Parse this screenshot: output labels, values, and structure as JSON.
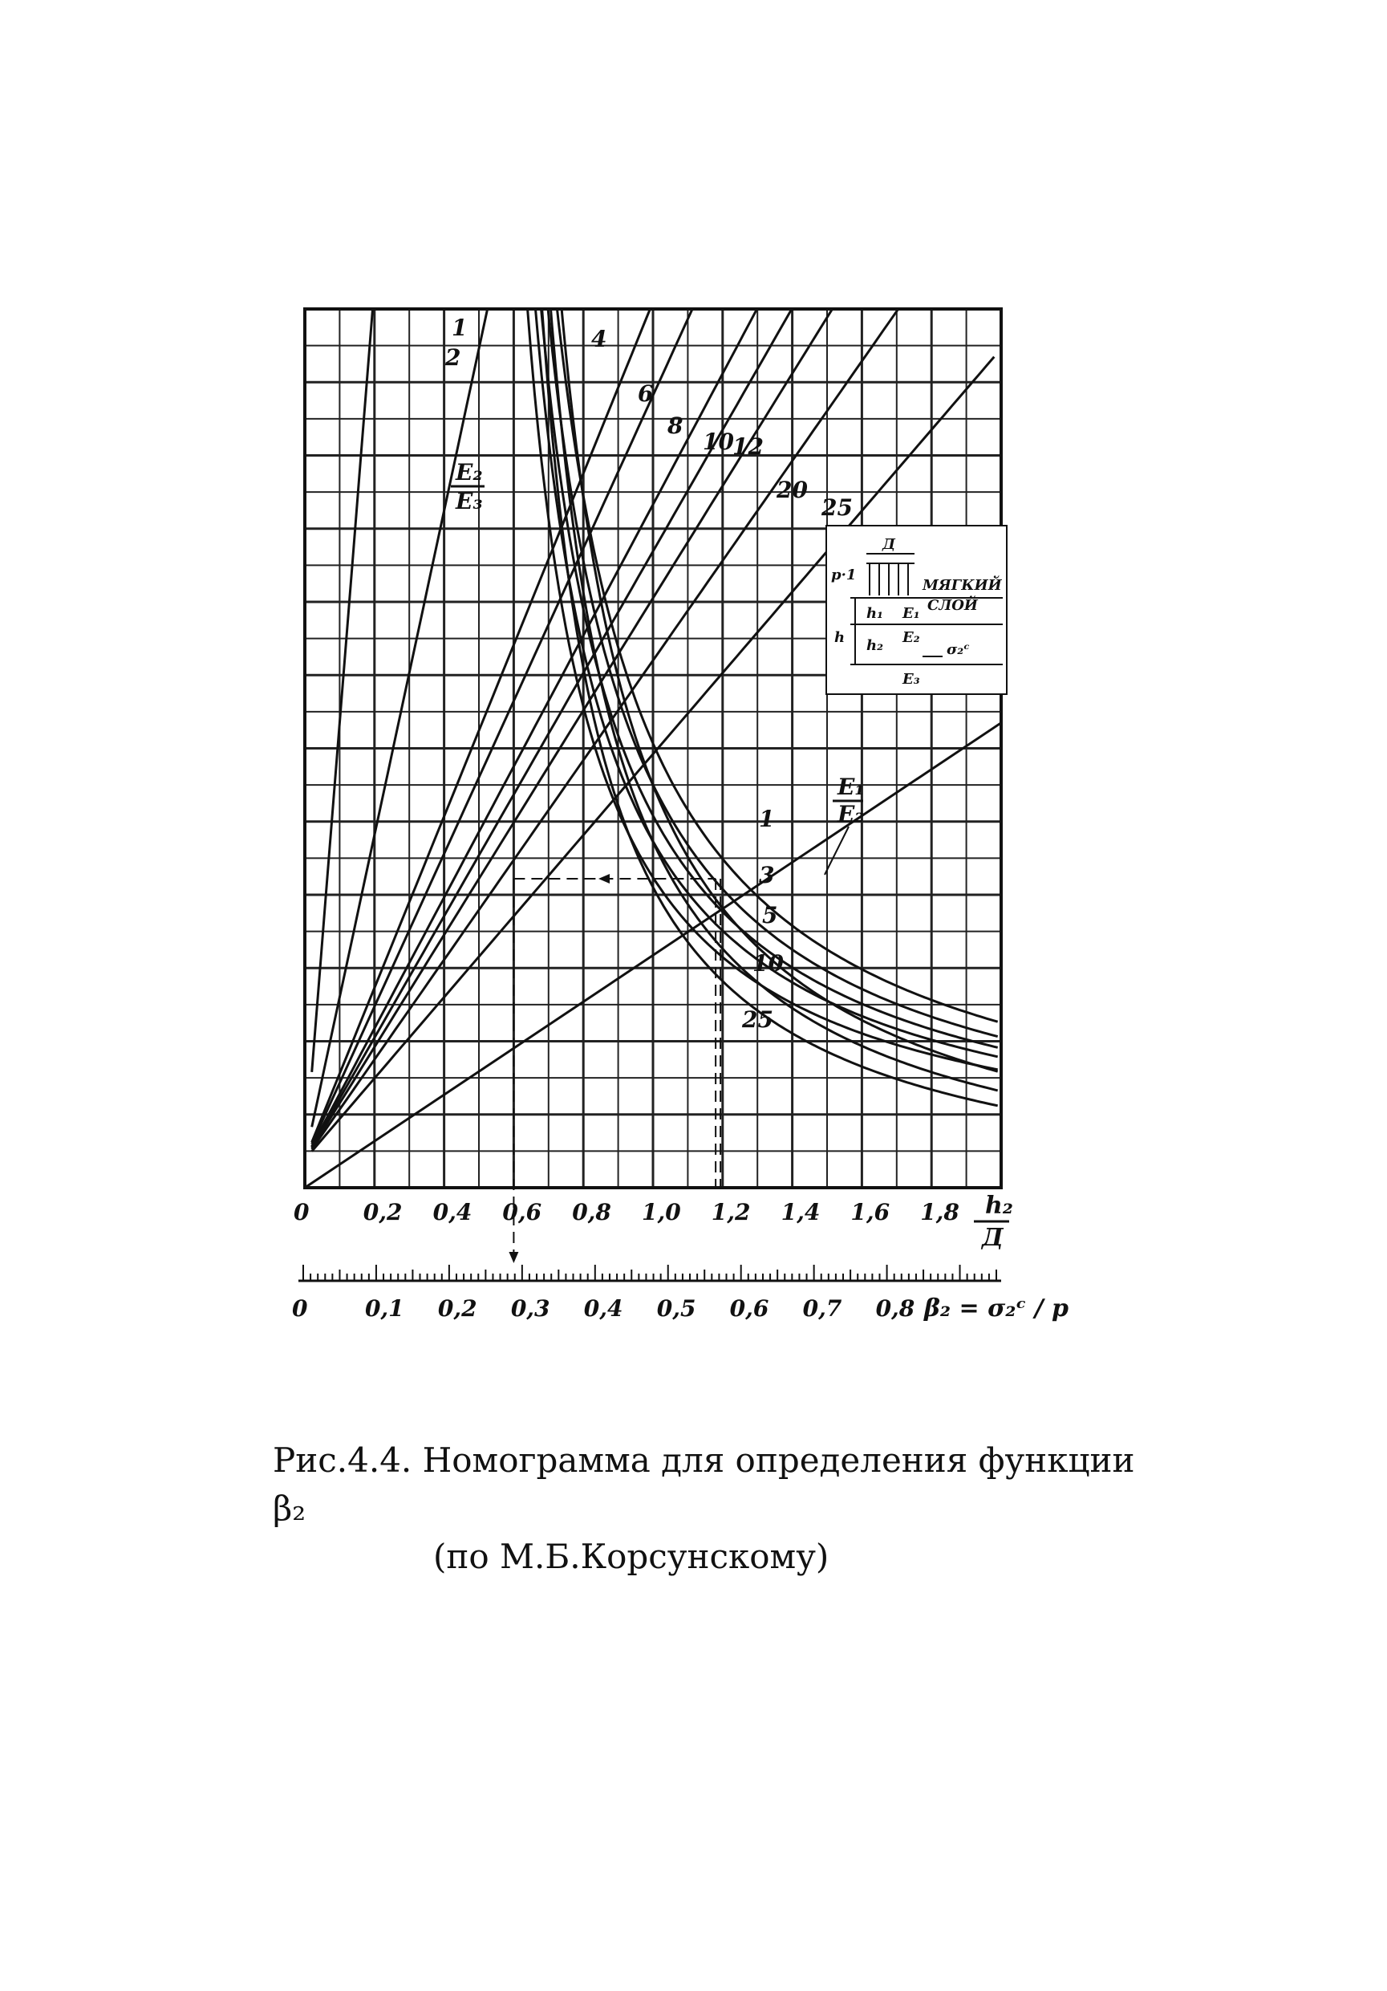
{
  "chart_data": {
    "type": "nomogram",
    "x_axis": {
      "label_num": "h₂",
      "label_den": "Д",
      "ticks": [
        "0",
        "0,2",
        "0,4",
        "0,6",
        "0,8",
        "1,0",
        "1,2",
        "1,4",
        "1,6",
        "1,8"
      ],
      "range": [
        0,
        2.0
      ]
    },
    "y_scale": {
      "label": "β₂ = σ₂ᶜ / p",
      "ticks": [
        "0",
        "0,1",
        "0,2",
        "0,3",
        "0,4",
        "0,5",
        "0,6",
        "0,7",
        "0,8"
      ],
      "range": [
        0,
        0.95
      ]
    },
    "grid": true,
    "family_ratio": {
      "label_num": "E₂",
      "label_den": "E₃",
      "curves": [
        {
          "label": "1",
          "slope": 14.0
        },
        {
          "label": "2",
          "slope": 5.2
        },
        {
          "label": "4",
          "slope": 2.75
        },
        {
          "label": "6",
          "slope": 2.45
        },
        {
          "label": "8",
          "slope": 2.1
        },
        {
          "label": "10",
          "slope": 1.95
        },
        {
          "label": "12",
          "slope": 1.8
        },
        {
          "label": "20",
          "slope": 1.6
        },
        {
          "label": "25",
          "slope": 1.3
        }
      ]
    },
    "family_layer": {
      "label_num": "E₁",
      "label_den": "E₂",
      "curves": [
        {
          "label": "1",
          "k": 0.42
        },
        {
          "label": "3",
          "k": 0.38
        },
        {
          "label": "5",
          "k": 0.35
        },
        {
          "label": "10",
          "k": 0.325
        },
        {
          "label": "25",
          "k": 0.29
        }
      ]
    },
    "example_path": {
      "x1": 0.6,
      "x2": 1.18,
      "beta": 0.32
    }
  },
  "inset": {
    "load": "p·1",
    "width": "Д",
    "layer_note_1": "МЯГКИЙ",
    "layer_note_2": "СЛОЙ",
    "e1": "E₁",
    "e2": "E₂",
    "e3": "E₃",
    "h1": "h₁",
    "h2": "h₂",
    "h": "h",
    "sigma": "σ₂ᶜ"
  },
  "caption": {
    "line1": "Рис.4.4. Номограмма для определения функции β₂",
    "line2": "(по М.Б.Корсунскому)"
  }
}
